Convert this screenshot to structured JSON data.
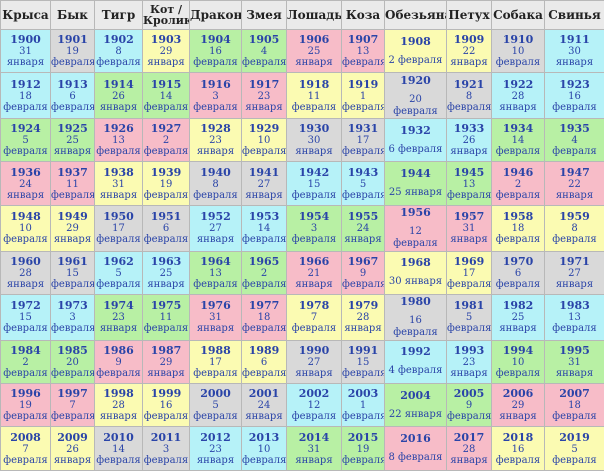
{
  "headers": [
    "Крыса",
    "Бык",
    "Тигр",
    "Кот / Кролик",
    "Дракон",
    "Змея",
    "Лошадь",
    "Коза",
    "Обезьяна",
    "Петух",
    "Собака",
    "Свинья"
  ],
  "colors": {
    "c": "#b6f2f8",
    "p": "#f7bcc8",
    "y": "#fbfbb2",
    "g": "#b8f0a4",
    "s": "#d9d9d9",
    "w": "#ffffff"
  },
  "rows": [
    [
      {
        "y": "1900",
        "d": "31",
        "m": "января",
        "c": "c"
      },
      {
        "y": "1901",
        "d": "19",
        "m": "февраля",
        "c": "s"
      },
      {
        "y": "1902",
        "d": "8",
        "m": "февраля",
        "c": "c"
      },
      {
        "y": "1903",
        "d": "29",
        "m": "января",
        "c": "y"
      },
      {
        "y": "1904",
        "d": "16",
        "m": "февраля",
        "c": "g"
      },
      {
        "y": "1905",
        "d": "4",
        "m": "февраля",
        "c": "g"
      },
      {
        "y": "1906",
        "d": "25",
        "m": "января",
        "c": "p"
      },
      {
        "y": "1907",
        "d": "13",
        "m": "февраля",
        "c": "p"
      },
      {
        "y": "1908",
        "d": "2 февраля",
        "c": "y",
        "w": 1
      },
      {
        "y": "1909",
        "d": "22",
        "m": "января",
        "c": "y"
      },
      {
        "y": "1910",
        "d": "10",
        "m": "февраля",
        "c": "s"
      },
      {
        "y": "1911",
        "d": "30",
        "m": "января",
        "c": "c"
      }
    ],
    [
      {
        "y": "1912",
        "d": "18",
        "m": "февраля",
        "c": "c"
      },
      {
        "y": "1913",
        "d": "6",
        "m": "февраля",
        "c": "c"
      },
      {
        "y": "1914",
        "d": "26",
        "m": "января",
        "c": "g"
      },
      {
        "y": "1915",
        "d": "14",
        "m": "февраля",
        "c": "g"
      },
      {
        "y": "1916",
        "d": "3",
        "m": "февраля",
        "c": "p"
      },
      {
        "y": "1917",
        "d": "23",
        "m": "января",
        "c": "p"
      },
      {
        "y": "1918",
        "d": "11",
        "m": "февраля",
        "c": "y"
      },
      {
        "y": "1919",
        "d": "1",
        "m": "февраля",
        "c": "y"
      },
      {
        "y": "1920",
        "d": "20",
        "m": "февраля",
        "c": "s",
        "w": 1
      },
      {
        "y": "1921",
        "d": "8",
        "m": "февраля",
        "c": "s"
      },
      {
        "y": "1922",
        "d": "28",
        "m": "января",
        "c": "c"
      },
      {
        "y": "1923",
        "d": "16",
        "m": "февраля",
        "c": "c"
      }
    ],
    [
      {
        "y": "1924",
        "d": "5",
        "m": "февраля",
        "c": "g"
      },
      {
        "y": "1925",
        "d": "25",
        "m": "января",
        "c": "g"
      },
      {
        "y": "1926",
        "d": "13",
        "m": "февраля",
        "c": "p"
      },
      {
        "y": "1927",
        "d": "2",
        "m": "февраля",
        "c": "p"
      },
      {
        "y": "1928",
        "d": "23",
        "m": "января",
        "c": "y"
      },
      {
        "y": "1929",
        "d": "10",
        "m": "февраля",
        "c": "y"
      },
      {
        "y": "1930",
        "d": "30",
        "m": "января",
        "c": "s"
      },
      {
        "y": "1931",
        "d": "17",
        "m": "февраля",
        "c": "s"
      },
      {
        "y": "1932",
        "d": "6 февраля",
        "c": "c",
        "w": 1
      },
      {
        "y": "1933",
        "d": "26",
        "m": "января",
        "c": "c"
      },
      {
        "y": "1934",
        "d": "14",
        "m": "февраля",
        "c": "g"
      },
      {
        "y": "1935",
        "d": "4",
        "m": "февраля",
        "c": "g"
      }
    ],
    [
      {
        "y": "1936",
        "d": "24",
        "m": "января",
        "c": "p"
      },
      {
        "y": "1937",
        "d": "11",
        "m": "февраля",
        "c": "p"
      },
      {
        "y": "1938",
        "d": "31",
        "m": "января",
        "c": "y"
      },
      {
        "y": "1939",
        "d": "19",
        "m": "февраля",
        "c": "y"
      },
      {
        "y": "1940",
        "d": "8",
        "m": "февраля",
        "c": "s"
      },
      {
        "y": "1941",
        "d": "27",
        "m": "января",
        "c": "s"
      },
      {
        "y": "1942",
        "d": "15",
        "m": "февраля",
        "c": "c"
      },
      {
        "y": "1943",
        "d": "5",
        "m": "февраля",
        "c": "c"
      },
      {
        "y": "1944",
        "d": "25 января",
        "c": "g",
        "w": 1
      },
      {
        "y": "1945",
        "d": "13",
        "m": "февраля",
        "c": "g"
      },
      {
        "y": "1946",
        "d": "2",
        "m": "февраля",
        "c": "p"
      },
      {
        "y": "1947",
        "d": "22",
        "m": "января",
        "c": "p"
      }
    ],
    [
      {
        "y": "1948",
        "d": "10",
        "m": "февраля",
        "c": "y"
      },
      {
        "y": "1949",
        "d": "29",
        "m": "января",
        "c": "y"
      },
      {
        "y": "1950",
        "d": "17",
        "m": "февраля",
        "c": "s"
      },
      {
        "y": "1951",
        "d": "6",
        "m": "февраля",
        "c": "s"
      },
      {
        "y": "1952",
        "d": "27",
        "m": "января",
        "c": "c"
      },
      {
        "y": "1953",
        "d": "14",
        "m": "февраля",
        "c": "c"
      },
      {
        "y": "1954",
        "d": "3",
        "m": "февраля",
        "c": "g"
      },
      {
        "y": "1955",
        "d": "24",
        "m": "января",
        "c": "g"
      },
      {
        "y": "1956",
        "d": "12",
        "m": "февраля",
        "c": "p",
        "w": 1
      },
      {
        "y": "1957",
        "d": "31",
        "m": "января",
        "c": "p"
      },
      {
        "y": "1958",
        "d": "18",
        "m": "февраля",
        "c": "y"
      },
      {
        "y": "1959",
        "d": "8",
        "m": "февраля",
        "c": "y"
      }
    ],
    [
      {
        "y": "1960",
        "d": "28",
        "m": "января",
        "c": "s"
      },
      {
        "y": "1961",
        "d": "15",
        "m": "февраля",
        "c": "s"
      },
      {
        "y": "1962",
        "d": "5",
        "m": "февраля",
        "c": "c"
      },
      {
        "y": "1963",
        "d": "25",
        "m": "января",
        "c": "c"
      },
      {
        "y": "1964",
        "d": "13",
        "m": "февраля",
        "c": "g"
      },
      {
        "y": "1965",
        "d": "2",
        "m": "февраля",
        "c": "g"
      },
      {
        "y": "1966",
        "d": "21",
        "m": "января",
        "c": "p"
      },
      {
        "y": "1967",
        "d": "9",
        "m": "февраля",
        "c": "p"
      },
      {
        "y": "1968",
        "d": "30 января",
        "c": "y",
        "w": 1
      },
      {
        "y": "1969",
        "d": "17",
        "m": "февраля",
        "c": "y"
      },
      {
        "y": "1970",
        "d": "6",
        "m": "февраля",
        "c": "s"
      },
      {
        "y": "1971",
        "d": "27",
        "m": "января",
        "c": "s"
      }
    ],
    [
      {
        "y": "1972",
        "d": "15",
        "m": "февраля",
        "c": "c"
      },
      {
        "y": "1973",
        "d": "3",
        "m": "февраля",
        "c": "c"
      },
      {
        "y": "1974",
        "d": "23",
        "m": "января",
        "c": "g"
      },
      {
        "y": "1975",
        "d": "11",
        "m": "февраля",
        "c": "g"
      },
      {
        "y": "1976",
        "d": "31",
        "m": "января",
        "c": "p"
      },
      {
        "y": "1977",
        "d": "18",
        "m": "февраля",
        "c": "p"
      },
      {
        "y": "1978",
        "d": "7",
        "m": "февраля",
        "c": "y"
      },
      {
        "y": "1979",
        "d": "28",
        "m": "января",
        "c": "y"
      },
      {
        "y": "1980",
        "d": "16",
        "m": "февраля",
        "c": "s",
        "w": 1
      },
      {
        "y": "1981",
        "d": "5",
        "m": "февраля",
        "c": "s"
      },
      {
        "y": "1982",
        "d": "25",
        "m": "января",
        "c": "c"
      },
      {
        "y": "1983",
        "d": "13",
        "m": "февраля",
        "c": "c"
      }
    ],
    [
      {
        "y": "1984",
        "d": "2",
        "m": "февраля",
        "c": "g"
      },
      {
        "y": "1985",
        "d": "20",
        "m": "февраля",
        "c": "g"
      },
      {
        "y": "1986",
        "d": "9",
        "m": "февраля",
        "c": "p"
      },
      {
        "y": "1987",
        "d": "29",
        "m": "января",
        "c": "p"
      },
      {
        "y": "1988",
        "d": "17",
        "m": "февраля",
        "c": "y"
      },
      {
        "y": "1989",
        "d": "6",
        "m": "февраля",
        "c": "y"
      },
      {
        "y": "1990",
        "d": "27",
        "m": "января",
        "c": "s"
      },
      {
        "y": "1991",
        "d": "15",
        "m": "февраля",
        "c": "s"
      },
      {
        "y": "1992",
        "d": "4 февраля",
        "c": "c",
        "w": 1
      },
      {
        "y": "1993",
        "d": "23",
        "m": "января",
        "c": "c"
      },
      {
        "y": "1994",
        "d": "10",
        "m": "февраля",
        "c": "g"
      },
      {
        "y": "1995",
        "d": "31",
        "m": "января",
        "c": "g"
      }
    ],
    [
      {
        "y": "1996",
        "d": "19",
        "m": "февраля",
        "c": "p"
      },
      {
        "y": "1997",
        "d": "7",
        "m": "февраля",
        "c": "p"
      },
      {
        "y": "1998",
        "d": "28",
        "m": "января",
        "c": "y"
      },
      {
        "y": "1999",
        "d": "16",
        "m": "февраля",
        "c": "y"
      },
      {
        "y": "2000",
        "d": "5",
        "m": "февраля",
        "c": "s"
      },
      {
        "y": "2001",
        "d": "24",
        "m": "января",
        "c": "s"
      },
      {
        "y": "2002",
        "d": "12",
        "m": "февраля",
        "c": "c"
      },
      {
        "y": "2003",
        "d": "1",
        "m": "февраля",
        "c": "c"
      },
      {
        "y": "2004",
        "d": "22 января",
        "c": "g",
        "w": 1
      },
      {
        "y": "2005",
        "d": "9",
        "m": "февраля",
        "c": "g"
      },
      {
        "y": "2006",
        "d": "29",
        "m": "января",
        "c": "p"
      },
      {
        "y": "2007",
        "d": "18",
        "m": "февраля",
        "c": "p"
      }
    ],
    [
      {
        "y": "2008",
        "d": "7",
        "m": "февраля",
        "c": "y"
      },
      {
        "y": "2009",
        "d": "26",
        "m": "января",
        "c": "y"
      },
      {
        "y": "2010",
        "d": "14",
        "m": "февраля",
        "c": "s"
      },
      {
        "y": "2011",
        "d": "3",
        "m": "февраля",
        "c": "s"
      },
      {
        "y": "2012",
        "d": "23",
        "m": "января",
        "c": "c"
      },
      {
        "y": "2013",
        "d": "10",
        "m": "февраля",
        "c": "c"
      },
      {
        "y": "2014",
        "d": "31",
        "m": "января",
        "c": "g"
      },
      {
        "y": "2015",
        "d": "19",
        "m": "февраля",
        "c": "g"
      },
      {
        "y": "2016",
        "d": "8 февраля",
        "c": "p",
        "w": 1
      },
      {
        "y": "2017",
        "d": "28",
        "m": "января",
        "c": "p"
      },
      {
        "y": "2018",
        "d": "16",
        "m": "февраля",
        "c": "y"
      },
      {
        "y": "2019",
        "d": "5",
        "m": "февраля",
        "c": "y"
      }
    ]
  ]
}
